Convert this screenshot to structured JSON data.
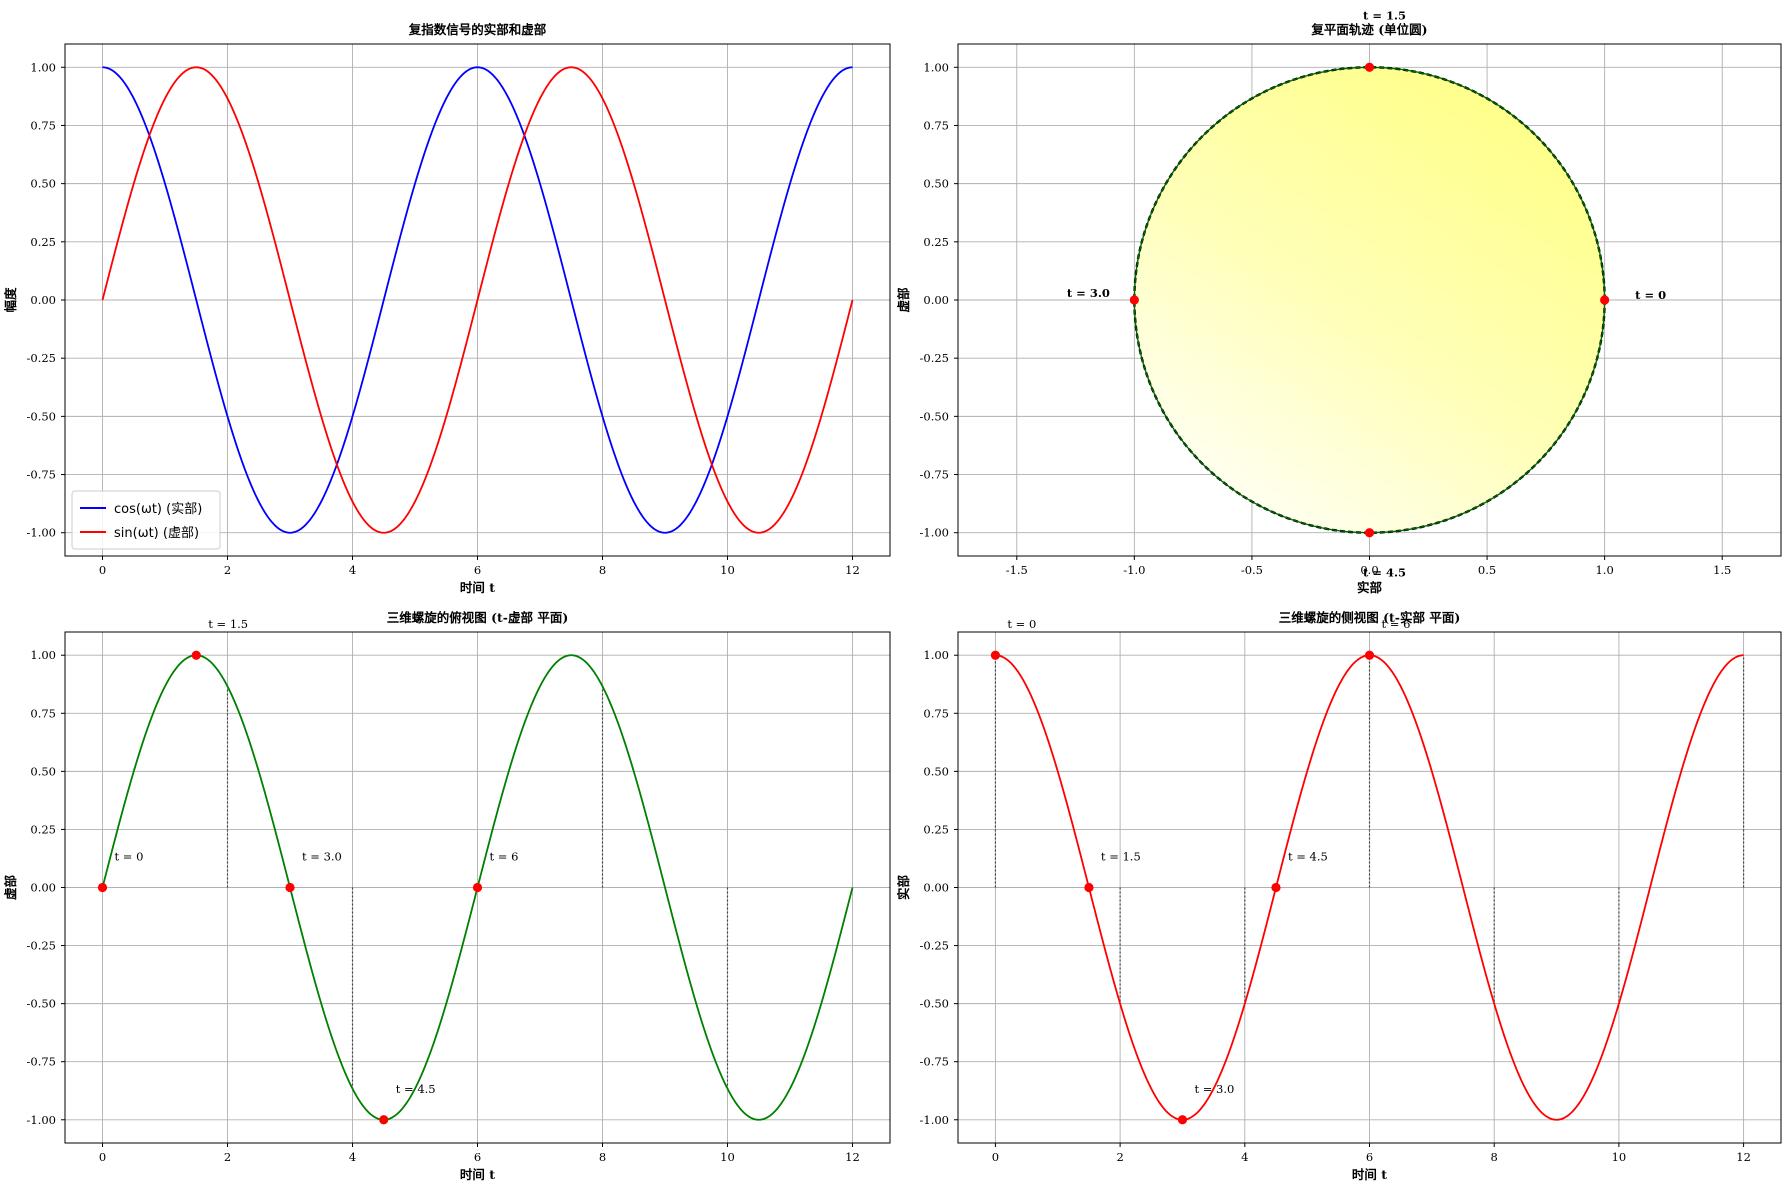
{
  "chart_data": [
    {
      "type": "line",
      "title": "复指数信号的实部和虚部",
      "xlabel": "时间 t",
      "ylabel": "幅度",
      "xlim": [
        -0.6,
        12.6
      ],
      "ylim": [
        -1.1,
        1.1
      ],
      "xticks": [
        0,
        2,
        4,
        6,
        8,
        10,
        12
      ],
      "xtick_labels": [
        "0",
        "2",
        "4",
        "6",
        "8",
        "10",
        "12"
      ],
      "yticks": [
        1.0,
        0.75,
        0.5,
        0.25,
        0.0,
        -0.25,
        -0.5,
        -0.75,
        -1.0
      ],
      "ytick_labels": [
        "1.00",
        "0.75",
        "0.50",
        "0.25",
        "0.00",
        "-0.25",
        "-0.50",
        "-0.75",
        "-1.00"
      ],
      "grid": true,
      "legend_position": "lower-left",
      "series": [
        {
          "name": "cos(ωt) (实部)",
          "function": "cos",
          "color": "#0000ff",
          "t_range": [
            0,
            12
          ],
          "period": 6
        },
        {
          "name": "sin(ωt) (虚部)",
          "function": "sin",
          "color": "#ff0000",
          "t_range": [
            0,
            12
          ],
          "period": 6
        }
      ]
    },
    {
      "type": "scatter",
      "title": "复平面轨迹 (单位圆)",
      "xlabel": "实部",
      "ylabel": "虚部",
      "xlim": [
        -1.75,
        1.75
      ],
      "ylim": [
        -1.1,
        1.1
      ],
      "xticks": [
        -1.5,
        -1.0,
        -0.5,
        0.0,
        0.5,
        1.0,
        1.5
      ],
      "xtick_labels": [
        "-1.5",
        "-1.0",
        "-0.5",
        "0.0",
        "0.5",
        "1.0",
        "1.5"
      ],
      "yticks": [
        1.0,
        0.75,
        0.5,
        0.25,
        0.0,
        -0.25,
        -0.5,
        -0.75,
        -1.0
      ],
      "ytick_labels": [
        "1.00",
        "0.75",
        "0.50",
        "0.25",
        "0.00",
        "-0.25",
        "-0.50",
        "-0.75",
        "-1.00"
      ],
      "grid": true,
      "circle_color": "#006400",
      "fill_color": "#ffff99",
      "points": [
        {
          "x": 1.0,
          "y": 0.0,
          "label": "t = 0"
        },
        {
          "x": 0.0,
          "y": 1.0,
          "label": "t = 1.5"
        },
        {
          "x": -1.0,
          "y": 0.0,
          "label": "t = 3.0"
        },
        {
          "x": 0.0,
          "y": -1.0,
          "label": "t = 4.5"
        }
      ],
      "point_color": "#ff0000"
    },
    {
      "type": "line",
      "title": "三维螺旋的俯视图 (t-虚部 平面)",
      "xlabel": "时间 t",
      "ylabel": "虚部",
      "xlim": [
        -0.6,
        12.6
      ],
      "ylim": [
        -1.1,
        1.1
      ],
      "xticks": [
        0,
        2,
        4,
        6,
        8,
        10,
        12
      ],
      "xtick_labels": [
        "0",
        "2",
        "4",
        "6",
        "8",
        "10",
        "12"
      ],
      "yticks": [
        1.0,
        0.75,
        0.5,
        0.25,
        0.0,
        -0.25,
        -0.5,
        -0.75,
        -1.0
      ],
      "ytick_labels": [
        "1.00",
        "0.75",
        "0.50",
        "0.25",
        "0.00",
        "-0.25",
        "-0.50",
        "-0.75",
        "-1.00"
      ],
      "grid": true,
      "series": [
        {
          "function": "sin",
          "color": "#008000",
          "t_range": [
            0,
            12
          ],
          "period": 6
        }
      ],
      "points": [
        {
          "x": 0,
          "y": 0.0,
          "label": "t = 0"
        },
        {
          "x": 1.5,
          "y": 1.0,
          "label": "t = 1.5"
        },
        {
          "x": 3.0,
          "y": 0.0,
          "label": "t = 3.0"
        },
        {
          "x": 4.5,
          "y": -1.0,
          "label": "t = 4.5"
        },
        {
          "x": 6,
          "y": 0.0,
          "label": "t = 6"
        }
      ],
      "point_color": "#ff0000",
      "dotted_stems_x": [
        2,
        4,
        8,
        10
      ]
    },
    {
      "type": "line",
      "title": "三维螺旋的侧视图 (t-实部 平面)",
      "xlabel": "时间 t",
      "ylabel": "实部",
      "xlim": [
        -0.6,
        12.6
      ],
      "ylim": [
        -1.1,
        1.1
      ],
      "xticks": [
        0,
        2,
        4,
        6,
        8,
        10,
        12
      ],
      "xtick_labels": [
        "0",
        "2",
        "4",
        "6",
        "8",
        "10",
        "12"
      ],
      "yticks": [
        1.0,
        0.75,
        0.5,
        0.25,
        0.0,
        -0.25,
        -0.5,
        -0.75,
        -1.0
      ],
      "ytick_labels": [
        "1.00",
        "0.75",
        "0.50",
        "0.25",
        "0.00",
        "-0.25",
        "-0.50",
        "-0.75",
        "-1.00"
      ],
      "grid": true,
      "series": [
        {
          "function": "cos",
          "color": "#ff0000",
          "t_range": [
            0,
            12
          ],
          "period": 6
        }
      ],
      "points": [
        {
          "x": 0,
          "y": 1.0,
          "label": "t = 0"
        },
        {
          "x": 1.5,
          "y": 0.0,
          "label": "t = 1.5"
        },
        {
          "x": 3.0,
          "y": -1.0,
          "label": "t = 3.0"
        },
        {
          "x": 4.5,
          "y": 0.0,
          "label": "t = 4.5"
        },
        {
          "x": 6,
          "y": 1.0,
          "label": "t = 6"
        }
      ],
      "point_color": "#ff0000",
      "dotted_stems_x": [
        0,
        2,
        4,
        6,
        8,
        10,
        12
      ]
    }
  ]
}
